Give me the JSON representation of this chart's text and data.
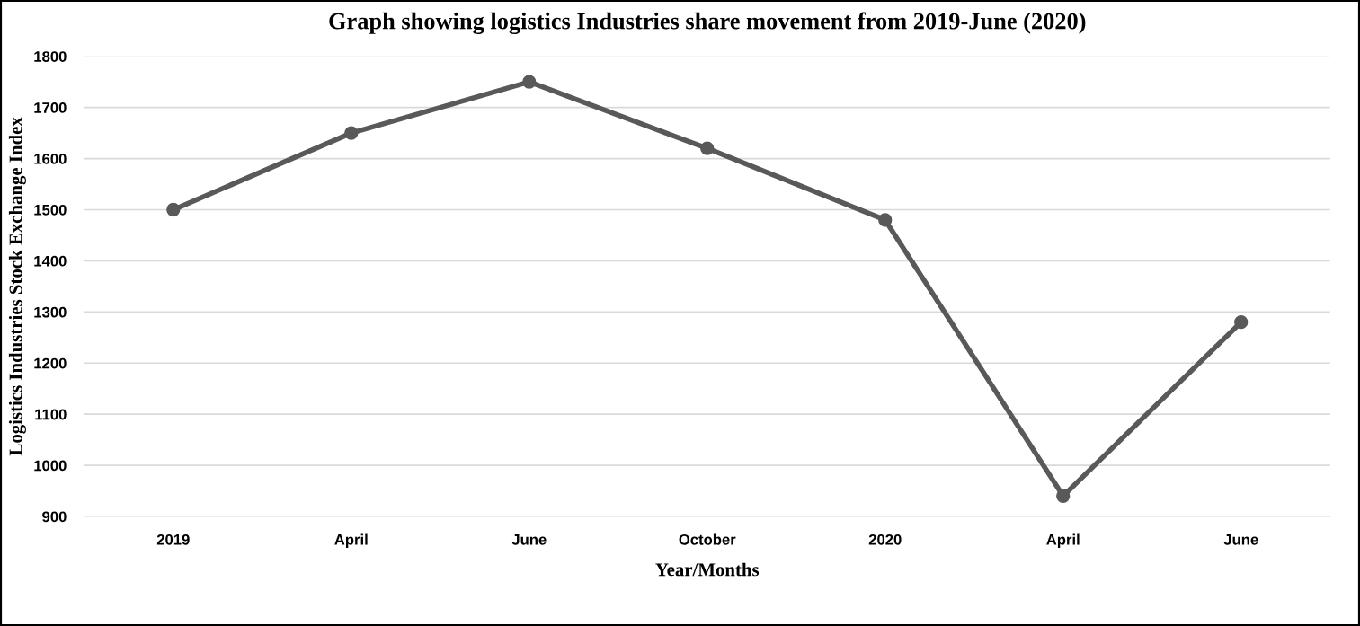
{
  "chart_data": {
    "type": "line",
    "title": "Graph showing logistics Industries share movement from 2019-June (2020)",
    "xlabel": "Year/Months",
    "ylabel": "Logistics Industries Stock Exchange Index",
    "categories": [
      "2019",
      "April",
      "June",
      "October",
      "2020",
      "April",
      "June"
    ],
    "series": [
      {
        "color": "#595959",
        "values": [
          1500,
          1650,
          1750,
          1620,
          1480,
          940,
          1280
        ]
      }
    ],
    "ylim": [
      900,
      1800
    ],
    "yticks": [
      900,
      1000,
      1100,
      1200,
      1300,
      1400,
      1500,
      1600,
      1700,
      1800
    ],
    "grid": "y",
    "marker": "circle",
    "line_style": "solid",
    "legend": false
  }
}
